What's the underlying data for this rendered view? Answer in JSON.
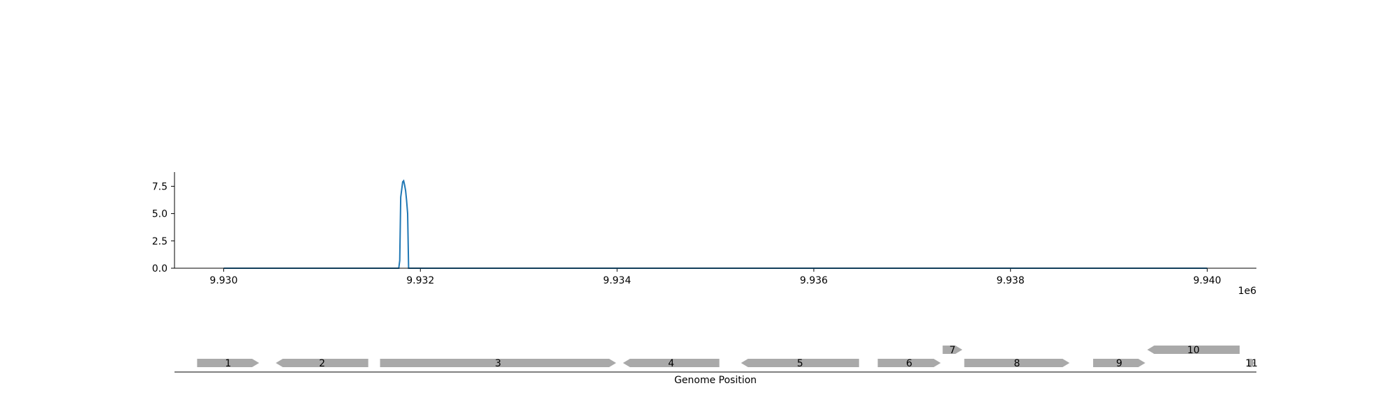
{
  "chart_data": [
    {
      "type": "line",
      "title": "",
      "xlabel": "",
      "ylabel": "",
      "x_offset_label": "1e6",
      "xlim": [
        9929500,
        9940500
      ],
      "ylim": [
        0,
        8.8
      ],
      "xticks": [
        9930000,
        9932000,
        9934000,
        9936000,
        9938000,
        9940000
      ],
      "xtick_labels": [
        "9.930",
        "9.932",
        "9.934",
        "9.936",
        "9.938",
        "9.940"
      ],
      "yticks": [
        0,
        2.5,
        5,
        7.5
      ],
      "ytick_labels": [
        "0.0",
        "2.5",
        "5.0",
        "7.5"
      ],
      "grid": false,
      "color": "#1f77b4",
      "series": [
        {
          "x": [
            9930000,
            9931780,
            9931790,
            9931800,
            9931810,
            9931820,
            9931830,
            9931840,
            9931850,
            9931860,
            9931870,
            9931880,
            9940000
          ],
          "y": [
            0,
            0,
            0.7,
            6.5,
            7.2,
            7.9,
            8.0,
            7.6,
            7.1,
            6.2,
            5.0,
            0,
            0
          ]
        }
      ]
    },
    {
      "type": "gene-track",
      "xlabel": "Genome Position",
      "xlim": [
        9929500,
        9940500
      ],
      "genes": [
        {
          "label": "1",
          "start": 9929730,
          "end": 9930360,
          "strand": "+",
          "row": 0
        },
        {
          "label": "2",
          "start": 9930530,
          "end": 9931470,
          "strand": "-",
          "row": 0
        },
        {
          "label": "3",
          "start": 9931590,
          "end": 9933990,
          "strand": "+",
          "row": 0
        },
        {
          "label": "4",
          "start": 9934060,
          "end": 9935040,
          "strand": "-",
          "row": 0
        },
        {
          "label": "5",
          "start": 9935260,
          "end": 9936460,
          "strand": "-",
          "row": 0
        },
        {
          "label": "6",
          "start": 9936650,
          "end": 9937290,
          "strand": "+",
          "row": 0
        },
        {
          "label": "7",
          "start": 9937310,
          "end": 9937510,
          "strand": "+",
          "row": 1
        },
        {
          "label": "8",
          "start": 9937530,
          "end": 9938600,
          "strand": "+",
          "row": 0
        },
        {
          "label": "9",
          "start": 9938840,
          "end": 9939370,
          "strand": "+",
          "row": 0
        },
        {
          "label": "10",
          "start": 9939390,
          "end": 9940330,
          "strand": "-",
          "row": 1
        },
        {
          "label": "11",
          "start": 9940420,
          "end": 9940480,
          "strand": "+",
          "row": 0
        }
      ]
    }
  ]
}
